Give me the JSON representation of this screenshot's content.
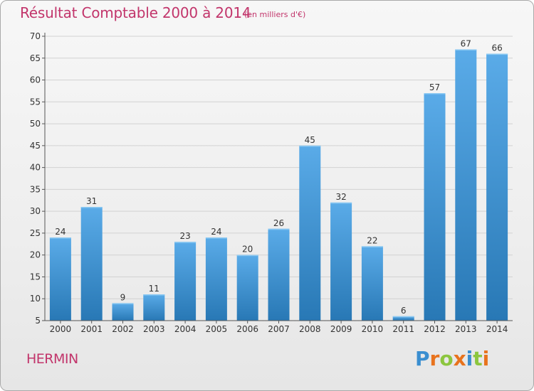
{
  "chart_data": {
    "type": "bar",
    "title": "Résultat Comptable 2000 à 2014",
    "subtitle": "(en milliers d'€)",
    "categories": [
      "2000",
      "2001",
      "2002",
      "2003",
      "2004",
      "2005",
      "2006",
      "2007",
      "2008",
      "2009",
      "2010",
      "2011",
      "2012",
      "2013",
      "2014"
    ],
    "values": [
      24,
      31,
      9,
      11,
      23,
      24,
      20,
      26,
      45,
      32,
      22,
      6,
      57,
      67,
      66
    ],
    "data_labels": [
      "24",
      "31",
      "9",
      "11",
      "23",
      "24",
      "20",
      "26",
      "45",
      "32",
      "22",
      "6",
      "57",
      "67",
      "66"
    ],
    "ylim": [
      5,
      70
    ],
    "yticks": [
      5,
      10,
      15,
      20,
      25,
      30,
      35,
      40,
      45,
      50,
      55,
      60,
      65,
      70
    ],
    "ytick_labels": [
      "5",
      "10",
      "15",
      "20",
      "25",
      "30",
      "35",
      "40",
      "45",
      "50",
      "55",
      "60",
      "65",
      "70"
    ],
    "grid": true,
    "xlabel": "",
    "ylabel": "",
    "colors": {
      "bar_light": "#5aabe8",
      "bar_dark": "#2878b5",
      "grid": "#d2d2d2",
      "axis": "#555555",
      "text_accent": "#c2356b"
    }
  },
  "commune": "HERMIN",
  "logo": {
    "text": "Proxiti",
    "letters": [
      {
        "char": "P",
        "color": "#3a8ed0"
      },
      {
        "char": "r",
        "color": "#e8731d"
      },
      {
        "char": "o",
        "color": "#8cc63f"
      },
      {
        "char": "x",
        "color": "#e8731d"
      },
      {
        "char": "i",
        "color": "#3a8ed0"
      },
      {
        "char": "t",
        "color": "#8cc63f"
      },
      {
        "char": "i",
        "color": "#e8731d"
      }
    ]
  }
}
